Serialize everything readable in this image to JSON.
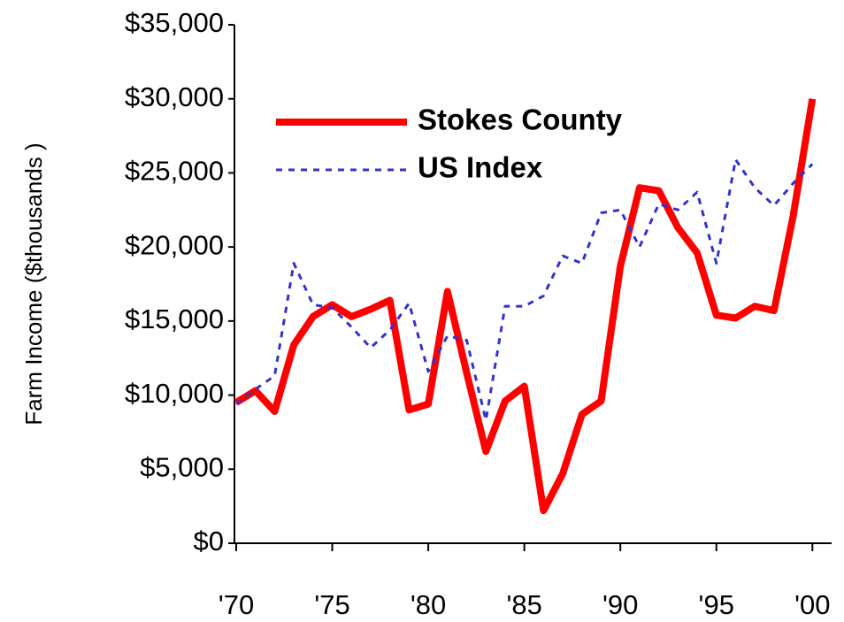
{
  "chart_data": {
    "type": "line",
    "y_label": "Farm Income ($thousands )",
    "x": [
      1970,
      1971,
      1972,
      1973,
      1974,
      1975,
      1976,
      1977,
      1978,
      1979,
      1980,
      1981,
      1982,
      1983,
      1984,
      1985,
      1986,
      1987,
      1988,
      1989,
      1990,
      1991,
      1992,
      1993,
      1994,
      1995,
      1996,
      1997,
      1998,
      1999,
      2000
    ],
    "series": [
      {
        "name": "Stokes County",
        "color": "#ff0000",
        "style": "solid",
        "values": [
          9500,
          10300,
          8900,
          13400,
          15300,
          16100,
          15300,
          15800,
          16400,
          9000,
          9400,
          17000,
          11500,
          6200,
          9600,
          10600,
          2200,
          4700,
          8700,
          9600,
          18700,
          24000,
          23800,
          21300,
          19600,
          15400,
          15200,
          16000,
          15700,
          22100,
          30000
        ]
      },
      {
        "name": "US Index",
        "color": "#3333cc",
        "style": "dashed",
        "values": [
          9400,
          10400,
          11300,
          18900,
          16100,
          15900,
          14600,
          13200,
          14400,
          16200,
          11600,
          14000,
          13700,
          8300,
          16000,
          16000,
          16700,
          19400,
          18900,
          22300,
          22500,
          20000,
          22900,
          22500,
          23700,
          18900,
          25900,
          24000,
          22800,
          24300,
          25600
        ]
      }
    ],
    "xlim": [
      1970,
      2001
    ],
    "xticks": [
      {
        "value": 1970,
        "label": "'70"
      },
      {
        "value": 1975,
        "label": "'75"
      },
      {
        "value": 1980,
        "label": "'80"
      },
      {
        "value": 1985,
        "label": "'85"
      },
      {
        "value": 1990,
        "label": "'90"
      },
      {
        "value": 1995,
        "label": "'95"
      },
      {
        "value": 2000,
        "label": "'00"
      }
    ],
    "ylim": [
      0,
      35000
    ],
    "yticks": [
      {
        "value": 0,
        "label": "$0"
      },
      {
        "value": 5000,
        "label": "$5,000"
      },
      {
        "value": 10000,
        "label": "$10,000"
      },
      {
        "value": 15000,
        "label": "$15,000"
      },
      {
        "value": 20000,
        "label": "$20,000"
      },
      {
        "value": 25000,
        "label": "$25,000"
      },
      {
        "value": 30000,
        "label": "$30,000"
      },
      {
        "value": 35000,
        "label": "$35,000"
      }
    ],
    "legend": "upper left",
    "grid": false
  }
}
